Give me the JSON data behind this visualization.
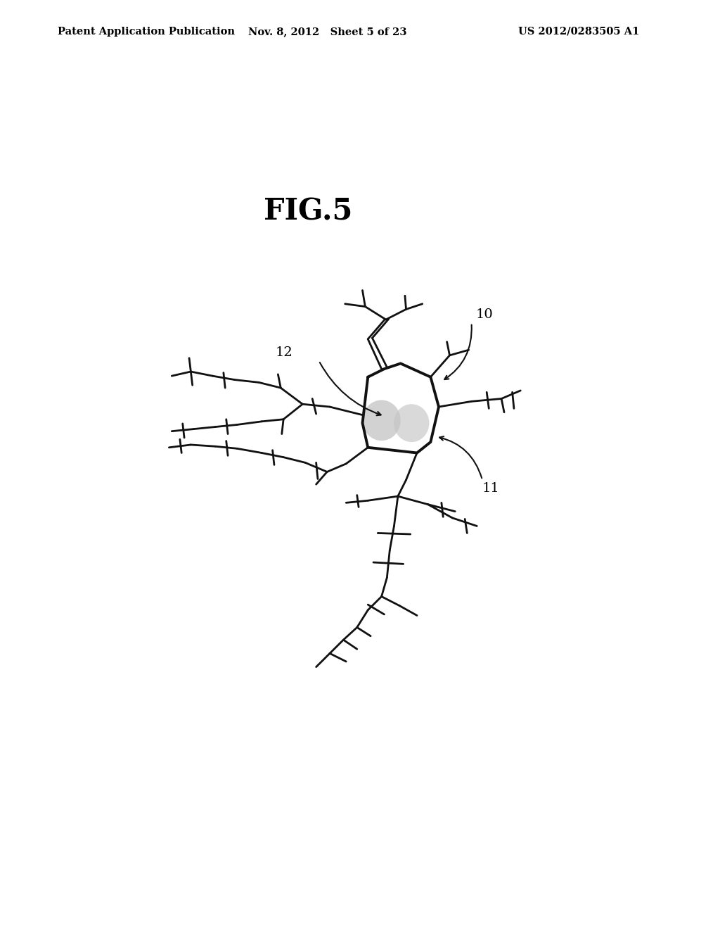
{
  "background_color": "#ffffff",
  "header_left": "Patent Application Publication",
  "header_mid": "Nov. 8, 2012   Sheet 5 of 23",
  "header_right": "US 2012/0283505 A1",
  "title": "FIG.5",
  "title_fontsize": 30,
  "header_fontsize": 10.5,
  "line_color": "#111111",
  "line_width": 2.0,
  "label_fontsize": 14
}
